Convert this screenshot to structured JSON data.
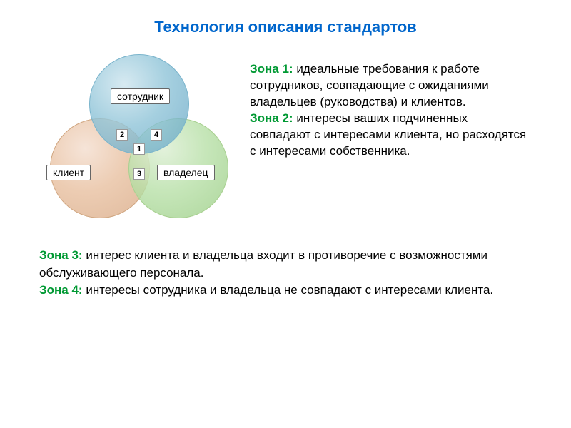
{
  "title": "Технология описания стандартов",
  "venn": {
    "circles": {
      "top": {
        "label": "сотрудник",
        "fill_inner": "#d4e8f0",
        "fill_outer": "#5a9ec0",
        "stroke": "#7ab4cc"
      },
      "left": {
        "label": "клиент",
        "fill_inner": "#f5e2d5",
        "fill_outer": "#d4a078",
        "stroke": "#d0a680"
      },
      "right": {
        "label": "владелец",
        "fill_inner": "#e0f0d8",
        "fill_outer": "#90c878",
        "stroke": "#a8d090"
      }
    },
    "zones": {
      "z1": "1",
      "z2": "2",
      "z3": "3",
      "z4": "4"
    }
  },
  "descriptions": {
    "zone1_label": "Зона 1:",
    "zone1_text": " идеальные требования к работе сотрудников,  совпадающие с ожиданиями владельцев (руководства) и клиентов.",
    "zone2_label": "Зона 2:",
    "zone2_text": " интересы ваших подчиненных совпадают с интересами клиента, но расходятся с интересами собственника.",
    "zone3_label": "Зона 3:",
    "zone3_text": " интерес клиента и владельца входит в противоречие с возможностями обслуживающего персонала.",
    "zone4_label": "Зона 4:",
    "zone4_text": " интересы сотрудника и владельца не совпадают с интересами клиента."
  },
  "colors": {
    "title": "#0066cc",
    "zone_label": "#009933",
    "text": "#000000",
    "background": "#ffffff"
  },
  "typography": {
    "title_fontsize": 22,
    "body_fontsize": 17,
    "venn_label_fontsize": 14,
    "zone_num_fontsize": 11
  }
}
